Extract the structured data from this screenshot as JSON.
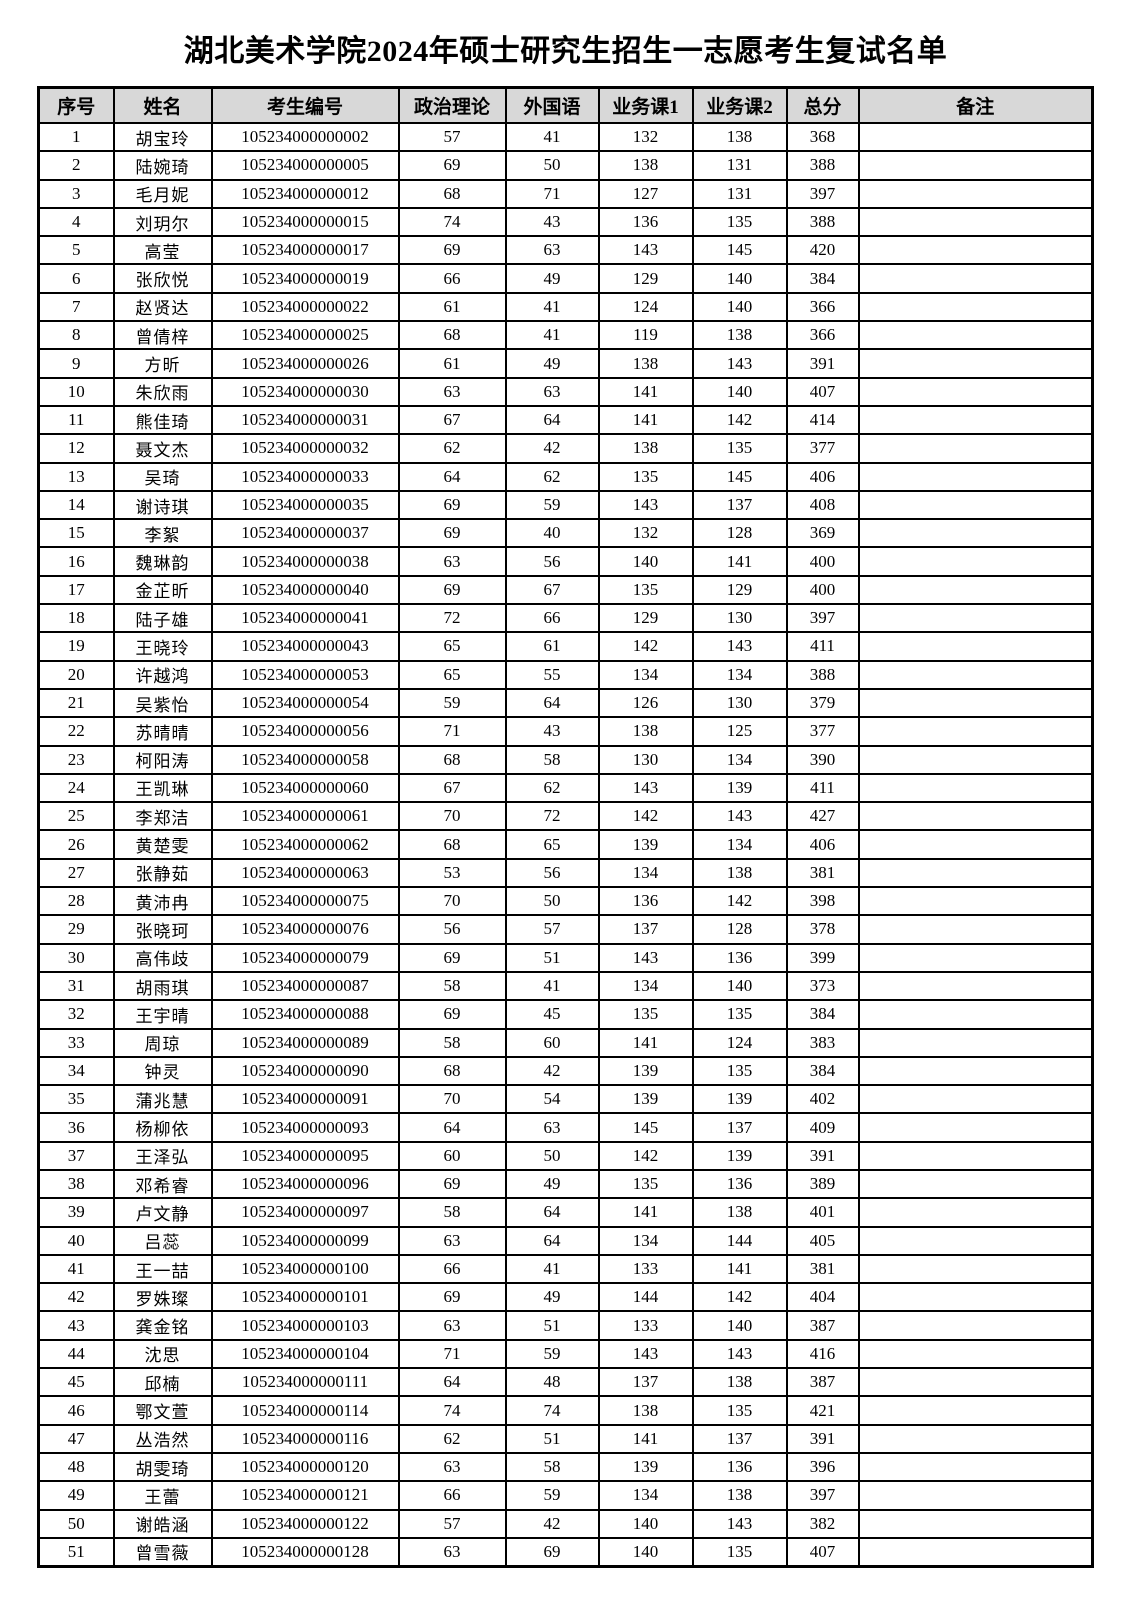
{
  "title": "湖北美术学院2024年硕士研究生招生一志愿考生复试名单",
  "colors": {
    "header_bg": "#d8d8d8",
    "border": "#000000",
    "text": "#000000",
    "page_bg": "#ffffff"
  },
  "table": {
    "headers": [
      "序号",
      "姓名",
      "考生编号",
      "政治理论",
      "外国语",
      "业务课1",
      "业务课2",
      "总分",
      "备注"
    ],
    "rows": [
      [
        "1",
        "胡宝玲",
        "105234000000002",
        "57",
        "41",
        "132",
        "138",
        "368",
        ""
      ],
      [
        "2",
        "陆婉琦",
        "105234000000005",
        "69",
        "50",
        "138",
        "131",
        "388",
        ""
      ],
      [
        "3",
        "毛月妮",
        "105234000000012",
        "68",
        "71",
        "127",
        "131",
        "397",
        ""
      ],
      [
        "4",
        "刘玥尔",
        "105234000000015",
        "74",
        "43",
        "136",
        "135",
        "388",
        ""
      ],
      [
        "5",
        "高莹",
        "105234000000017",
        "69",
        "63",
        "143",
        "145",
        "420",
        ""
      ],
      [
        "6",
        "张欣悦",
        "105234000000019",
        "66",
        "49",
        "129",
        "140",
        "384",
        ""
      ],
      [
        "7",
        "赵贤达",
        "105234000000022",
        "61",
        "41",
        "124",
        "140",
        "366",
        ""
      ],
      [
        "8",
        "曾倩梓",
        "105234000000025",
        "68",
        "41",
        "119",
        "138",
        "366",
        ""
      ],
      [
        "9",
        "方昕",
        "105234000000026",
        "61",
        "49",
        "138",
        "143",
        "391",
        ""
      ],
      [
        "10",
        "朱欣雨",
        "105234000000030",
        "63",
        "63",
        "141",
        "140",
        "407",
        ""
      ],
      [
        "11",
        "熊佳琦",
        "105234000000031",
        "67",
        "64",
        "141",
        "142",
        "414",
        ""
      ],
      [
        "12",
        "聂文杰",
        "105234000000032",
        "62",
        "42",
        "138",
        "135",
        "377",
        ""
      ],
      [
        "13",
        "吴琦",
        "105234000000033",
        "64",
        "62",
        "135",
        "145",
        "406",
        ""
      ],
      [
        "14",
        "谢诗琪",
        "105234000000035",
        "69",
        "59",
        "143",
        "137",
        "408",
        ""
      ],
      [
        "15",
        "李絮",
        "105234000000037",
        "69",
        "40",
        "132",
        "128",
        "369",
        ""
      ],
      [
        "16",
        "魏琳韵",
        "105234000000038",
        "63",
        "56",
        "140",
        "141",
        "400",
        ""
      ],
      [
        "17",
        "金芷昕",
        "105234000000040",
        "69",
        "67",
        "135",
        "129",
        "400",
        ""
      ],
      [
        "18",
        "陆子雄",
        "105234000000041",
        "72",
        "66",
        "129",
        "130",
        "397",
        ""
      ],
      [
        "19",
        "王晓玲",
        "105234000000043",
        "65",
        "61",
        "142",
        "143",
        "411",
        ""
      ],
      [
        "20",
        "许越鸿",
        "105234000000053",
        "65",
        "55",
        "134",
        "134",
        "388",
        ""
      ],
      [
        "21",
        "吴紫怡",
        "105234000000054",
        "59",
        "64",
        "126",
        "130",
        "379",
        ""
      ],
      [
        "22",
        "苏晴晴",
        "105234000000056",
        "71",
        "43",
        "138",
        "125",
        "377",
        ""
      ],
      [
        "23",
        "柯阳涛",
        "105234000000058",
        "68",
        "58",
        "130",
        "134",
        "390",
        ""
      ],
      [
        "24",
        "王凯琳",
        "105234000000060",
        "67",
        "62",
        "143",
        "139",
        "411",
        ""
      ],
      [
        "25",
        "李郑洁",
        "105234000000061",
        "70",
        "72",
        "142",
        "143",
        "427",
        ""
      ],
      [
        "26",
        "黄楚雯",
        "105234000000062",
        "68",
        "65",
        "139",
        "134",
        "406",
        ""
      ],
      [
        "27",
        "张静茹",
        "105234000000063",
        "53",
        "56",
        "134",
        "138",
        "381",
        ""
      ],
      [
        "28",
        "黄沛冉",
        "105234000000075",
        "70",
        "50",
        "136",
        "142",
        "398",
        ""
      ],
      [
        "29",
        "张晓珂",
        "105234000000076",
        "56",
        "57",
        "137",
        "128",
        "378",
        ""
      ],
      [
        "30",
        "高伟歧",
        "105234000000079",
        "69",
        "51",
        "143",
        "136",
        "399",
        ""
      ],
      [
        "31",
        "胡雨琪",
        "105234000000087",
        "58",
        "41",
        "134",
        "140",
        "373",
        ""
      ],
      [
        "32",
        "王宇晴",
        "105234000000088",
        "69",
        "45",
        "135",
        "135",
        "384",
        ""
      ],
      [
        "33",
        "周琼",
        "105234000000089",
        "58",
        "60",
        "141",
        "124",
        "383",
        ""
      ],
      [
        "34",
        "钟灵",
        "105234000000090",
        "68",
        "42",
        "139",
        "135",
        "384",
        ""
      ],
      [
        "35",
        "蒲兆慧",
        "105234000000091",
        "70",
        "54",
        "139",
        "139",
        "402",
        ""
      ],
      [
        "36",
        "杨柳依",
        "105234000000093",
        "64",
        "63",
        "145",
        "137",
        "409",
        ""
      ],
      [
        "37",
        "王泽弘",
        "105234000000095",
        "60",
        "50",
        "142",
        "139",
        "391",
        ""
      ],
      [
        "38",
        "邓希睿",
        "105234000000096",
        "69",
        "49",
        "135",
        "136",
        "389",
        ""
      ],
      [
        "39",
        "卢文静",
        "105234000000097",
        "58",
        "64",
        "141",
        "138",
        "401",
        ""
      ],
      [
        "40",
        "吕蕊",
        "105234000000099",
        "63",
        "64",
        "134",
        "144",
        "405",
        ""
      ],
      [
        "41",
        "王一喆",
        "105234000000100",
        "66",
        "41",
        "133",
        "141",
        "381",
        ""
      ],
      [
        "42",
        "罗姝璨",
        "105234000000101",
        "69",
        "49",
        "144",
        "142",
        "404",
        ""
      ],
      [
        "43",
        "龚金铭",
        "105234000000103",
        "63",
        "51",
        "133",
        "140",
        "387",
        ""
      ],
      [
        "44",
        "沈思",
        "105234000000104",
        "71",
        "59",
        "143",
        "143",
        "416",
        ""
      ],
      [
        "45",
        "邱楠",
        "105234000000111",
        "64",
        "48",
        "137",
        "138",
        "387",
        ""
      ],
      [
        "46",
        "鄂文萱",
        "105234000000114",
        "74",
        "74",
        "138",
        "135",
        "421",
        ""
      ],
      [
        "47",
        "丛浩然",
        "105234000000116",
        "62",
        "51",
        "141",
        "137",
        "391",
        ""
      ],
      [
        "48",
        "胡雯琦",
        "105234000000120",
        "63",
        "58",
        "139",
        "136",
        "396",
        ""
      ],
      [
        "49",
        "王蕾",
        "105234000000121",
        "66",
        "59",
        "134",
        "138",
        "397",
        ""
      ],
      [
        "50",
        "谢皓涵",
        "105234000000122",
        "57",
        "42",
        "140",
        "143",
        "382",
        ""
      ],
      [
        "51",
        "曾雪薇",
        "105234000000128",
        "63",
        "69",
        "140",
        "135",
        "407",
        ""
      ]
    ]
  }
}
